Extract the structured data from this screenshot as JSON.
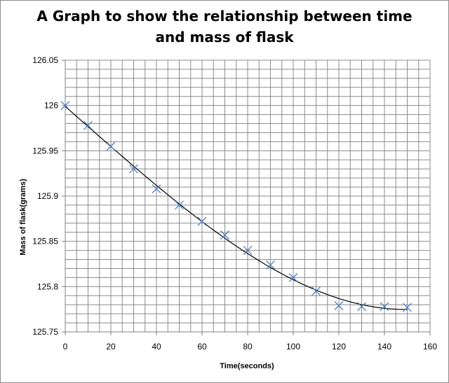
{
  "chart_data": {
    "type": "scatter",
    "title_line1": "A Graph to show the relationship between time",
    "title_line2": "and mass of flask",
    "xlabel": "Time(seconds)",
    "ylabel": "Mass of flask(grams)",
    "xlim": [
      0,
      160
    ],
    "ylim": [
      125.75,
      126.05
    ],
    "xticks": [
      "0",
      "20",
      "40",
      "60",
      "80",
      "100",
      "120",
      "140",
      "160"
    ],
    "yticks": [
      "125.75",
      "125.8",
      "125.85",
      "125.9",
      "125.95",
      "126",
      "126.05"
    ],
    "grid": true,
    "legend": "none",
    "series": [
      {
        "marker": "x",
        "color": "#4f81bd",
        "trendline": "polynomial",
        "trendline_color": "#000000",
        "points": [
          {
            "x": 0,
            "y": 126.0
          },
          {
            "x": 10,
            "y": 125.978
          },
          {
            "x": 20,
            "y": 125.955
          },
          {
            "x": 30,
            "y": 125.93
          },
          {
            "x": 40,
            "y": 125.908
          },
          {
            "x": 50,
            "y": 125.89
          },
          {
            "x": 60,
            "y": 125.872
          },
          {
            "x": 70,
            "y": 125.857
          },
          {
            "x": 80,
            "y": 125.84
          },
          {
            "x": 90,
            "y": 125.824
          },
          {
            "x": 100,
            "y": 125.81
          },
          {
            "x": 110,
            "y": 125.795
          },
          {
            "x": 120,
            "y": 125.779
          },
          {
            "x": 130,
            "y": 125.778
          },
          {
            "x": 140,
            "y": 125.778
          },
          {
            "x": 150,
            "y": 125.777
          }
        ]
      }
    ]
  }
}
